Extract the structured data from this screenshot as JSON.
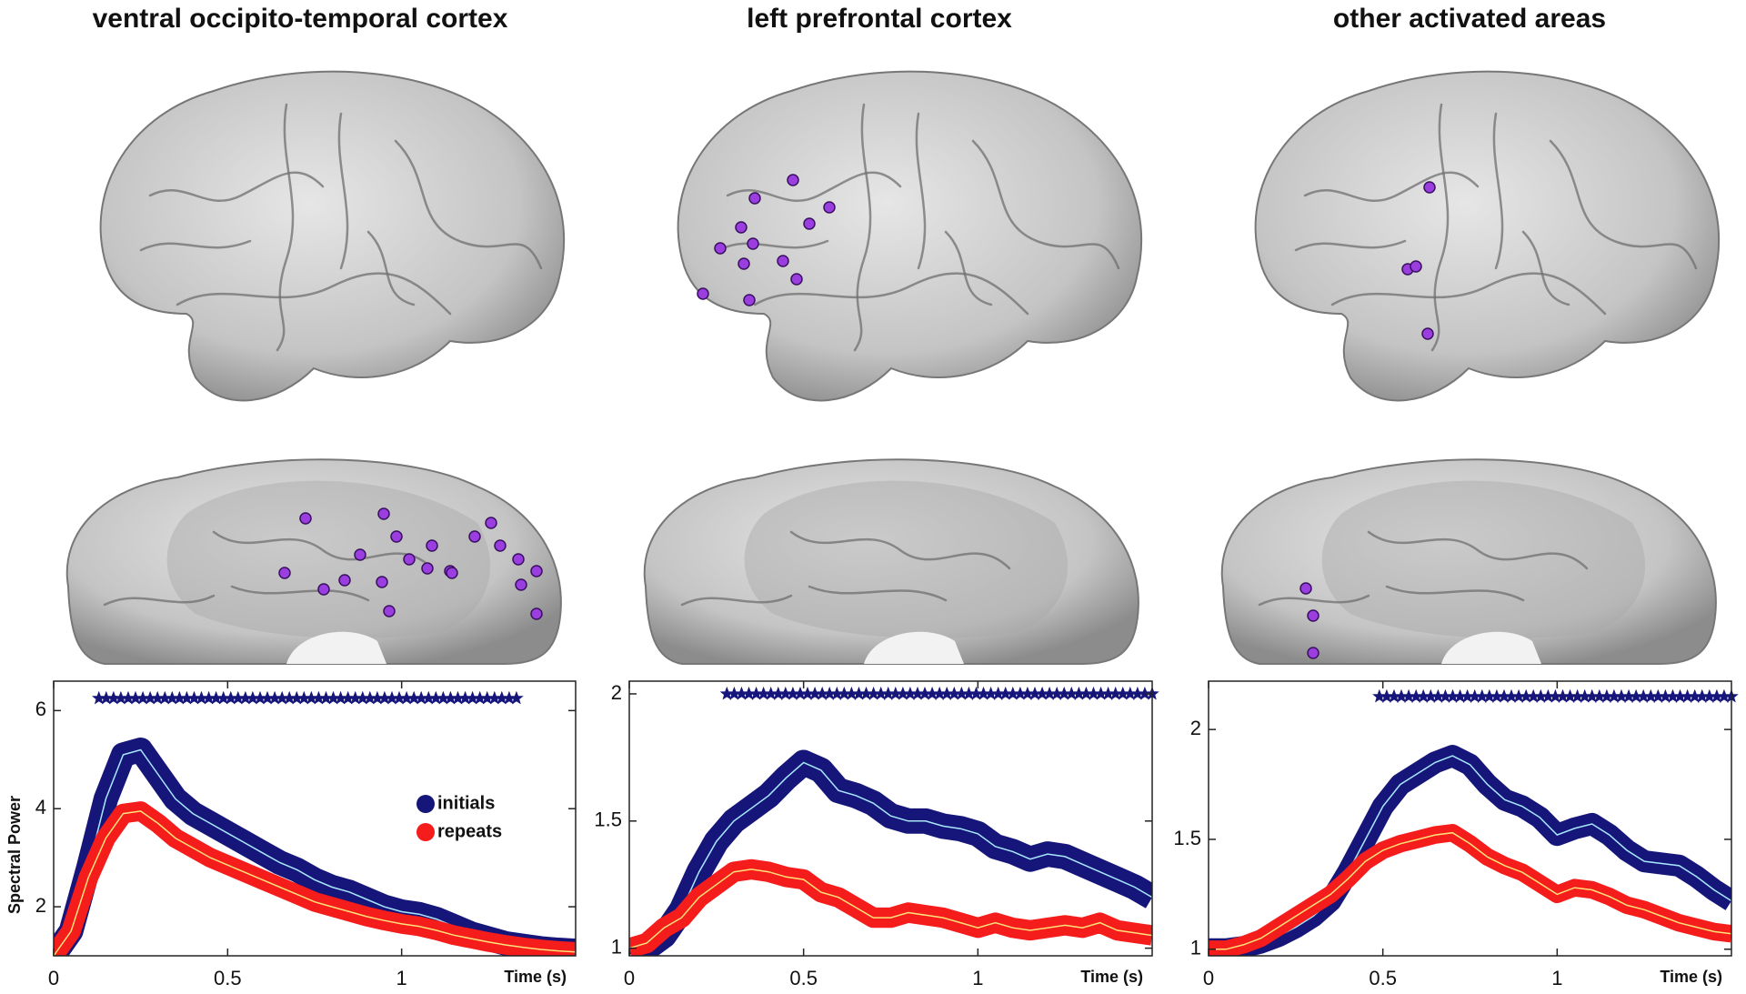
{
  "chart_data": [
    {
      "type": "line",
      "title": "ventral occipito-temporal cortex",
      "xlabel": "Time (s)",
      "ylabel": "Spectral Power",
      "x": [
        0,
        0.05,
        0.1,
        0.15,
        0.2,
        0.25,
        0.3,
        0.35,
        0.4,
        0.45,
        0.5,
        0.55,
        0.6,
        0.65,
        0.7,
        0.75,
        0.8,
        0.85,
        0.9,
        0.95,
        1.0,
        1.05,
        1.1,
        1.15,
        1.2,
        1.25,
        1.3,
        1.35,
        1.4,
        1.45,
        1.5
      ],
      "series": [
        {
          "name": "initials",
          "color": "#16167a",
          "line_color": "#a8e8ff",
          "band": 0.25,
          "values": [
            1.0,
            1.5,
            2.8,
            4.2,
            5.1,
            5.2,
            4.7,
            4.2,
            3.9,
            3.7,
            3.5,
            3.3,
            3.1,
            2.9,
            2.75,
            2.55,
            2.4,
            2.3,
            2.15,
            2.0,
            1.9,
            1.85,
            1.75,
            1.6,
            1.45,
            1.35,
            1.25,
            1.2,
            1.15,
            1.12,
            1.1
          ]
        },
        {
          "name": "repeats",
          "color": "#f51c1c",
          "line_color": "#ffe27a",
          "band": 0.2,
          "values": [
            1.0,
            1.5,
            2.6,
            3.4,
            3.9,
            3.95,
            3.7,
            3.4,
            3.2,
            3.0,
            2.85,
            2.7,
            2.55,
            2.4,
            2.25,
            2.1,
            2.0,
            1.9,
            1.8,
            1.72,
            1.65,
            1.6,
            1.52,
            1.42,
            1.35,
            1.28,
            1.22,
            1.17,
            1.13,
            1.1,
            1.08
          ]
        }
      ],
      "xlim": [
        0,
        1.5
      ],
      "xticks": [
        0,
        0.5,
        1
      ],
      "ylim": [
        1,
        6.6
      ],
      "yticks": [
        2,
        4,
        6
      ],
      "significance_x": [
        0.13,
        1.33
      ],
      "significance_y": 6.25,
      "significance_color": "#16167a"
    },
    {
      "type": "line",
      "title": "left prefrontal cortex",
      "xlabel": "Time (s)",
      "x": [
        0,
        0.05,
        0.1,
        0.15,
        0.2,
        0.25,
        0.3,
        0.35,
        0.4,
        0.45,
        0.5,
        0.55,
        0.6,
        0.65,
        0.7,
        0.75,
        0.8,
        0.85,
        0.9,
        0.95,
        1.0,
        1.05,
        1.1,
        1.15,
        1.2,
        1.25,
        1.3,
        1.35,
        1.4,
        1.45,
        1.5
      ],
      "series": [
        {
          "color": "#16167a",
          "line_color": "#a8e8ff",
          "band": 0.05,
          "values": [
            0.97,
            1.0,
            1.05,
            1.15,
            1.3,
            1.42,
            1.5,
            1.55,
            1.6,
            1.67,
            1.73,
            1.7,
            1.62,
            1.6,
            1.57,
            1.52,
            1.5,
            1.5,
            1.48,
            1.47,
            1.45,
            1.4,
            1.38,
            1.35,
            1.37,
            1.36,
            1.33,
            1.3,
            1.27,
            1.24,
            1.2
          ]
        },
        {
          "color": "#f51c1c",
          "line_color": "#ffe27a",
          "band": 0.04,
          "values": [
            1.0,
            1.02,
            1.08,
            1.12,
            1.2,
            1.25,
            1.3,
            1.31,
            1.3,
            1.28,
            1.27,
            1.22,
            1.2,
            1.16,
            1.12,
            1.12,
            1.14,
            1.13,
            1.12,
            1.1,
            1.08,
            1.1,
            1.08,
            1.07,
            1.08,
            1.09,
            1.08,
            1.1,
            1.07,
            1.06,
            1.05
          ]
        }
      ],
      "xlim": [
        0,
        1.5
      ],
      "xticks": [
        0,
        0.5,
        1
      ],
      "ylim": [
        0.97,
        2.05
      ],
      "yticks": [
        1,
        1.5,
        2
      ],
      "significance_x": [
        0.28,
        1.5
      ],
      "significance_y": 2.0,
      "significance_color": "#16167a"
    },
    {
      "type": "line",
      "title": "other activated areas",
      "xlabel": "Time (s)",
      "x": [
        0,
        0.05,
        0.1,
        0.15,
        0.2,
        0.25,
        0.3,
        0.35,
        0.4,
        0.45,
        0.5,
        0.55,
        0.6,
        0.65,
        0.7,
        0.75,
        0.8,
        0.85,
        0.9,
        0.95,
        1.0,
        1.05,
        1.1,
        1.15,
        1.2,
        1.25,
        1.3,
        1.35,
        1.4,
        1.45,
        1.5
      ],
      "series": [
        {
          "color": "#16167a",
          "line_color": "#a8e8ff",
          "band": 0.05,
          "values": [
            1.0,
            1.0,
            1.01,
            1.03,
            1.06,
            1.1,
            1.15,
            1.22,
            1.35,
            1.5,
            1.65,
            1.75,
            1.8,
            1.85,
            1.88,
            1.84,
            1.75,
            1.68,
            1.65,
            1.6,
            1.52,
            1.55,
            1.57,
            1.52,
            1.45,
            1.4,
            1.39,
            1.38,
            1.33,
            1.27,
            1.22
          ]
        },
        {
          "color": "#f51c1c",
          "line_color": "#ffe27a",
          "band": 0.04,
          "values": [
            1.0,
            1.0,
            1.02,
            1.05,
            1.1,
            1.15,
            1.2,
            1.25,
            1.32,
            1.4,
            1.45,
            1.48,
            1.5,
            1.52,
            1.53,
            1.48,
            1.42,
            1.38,
            1.35,
            1.3,
            1.25,
            1.28,
            1.27,
            1.24,
            1.2,
            1.18,
            1.15,
            1.12,
            1.1,
            1.08,
            1.07
          ]
        }
      ],
      "xlim": [
        0,
        1.5
      ],
      "xticks": [
        0,
        0.5,
        1
      ],
      "ylim": [
        0.97,
        2.22
      ],
      "yticks": [
        1,
        1.5,
        2
      ],
      "significance_x": [
        0.49,
        1.5
      ],
      "significance_y": 2.15,
      "significance_color": "#16167a"
    }
  ]
}
